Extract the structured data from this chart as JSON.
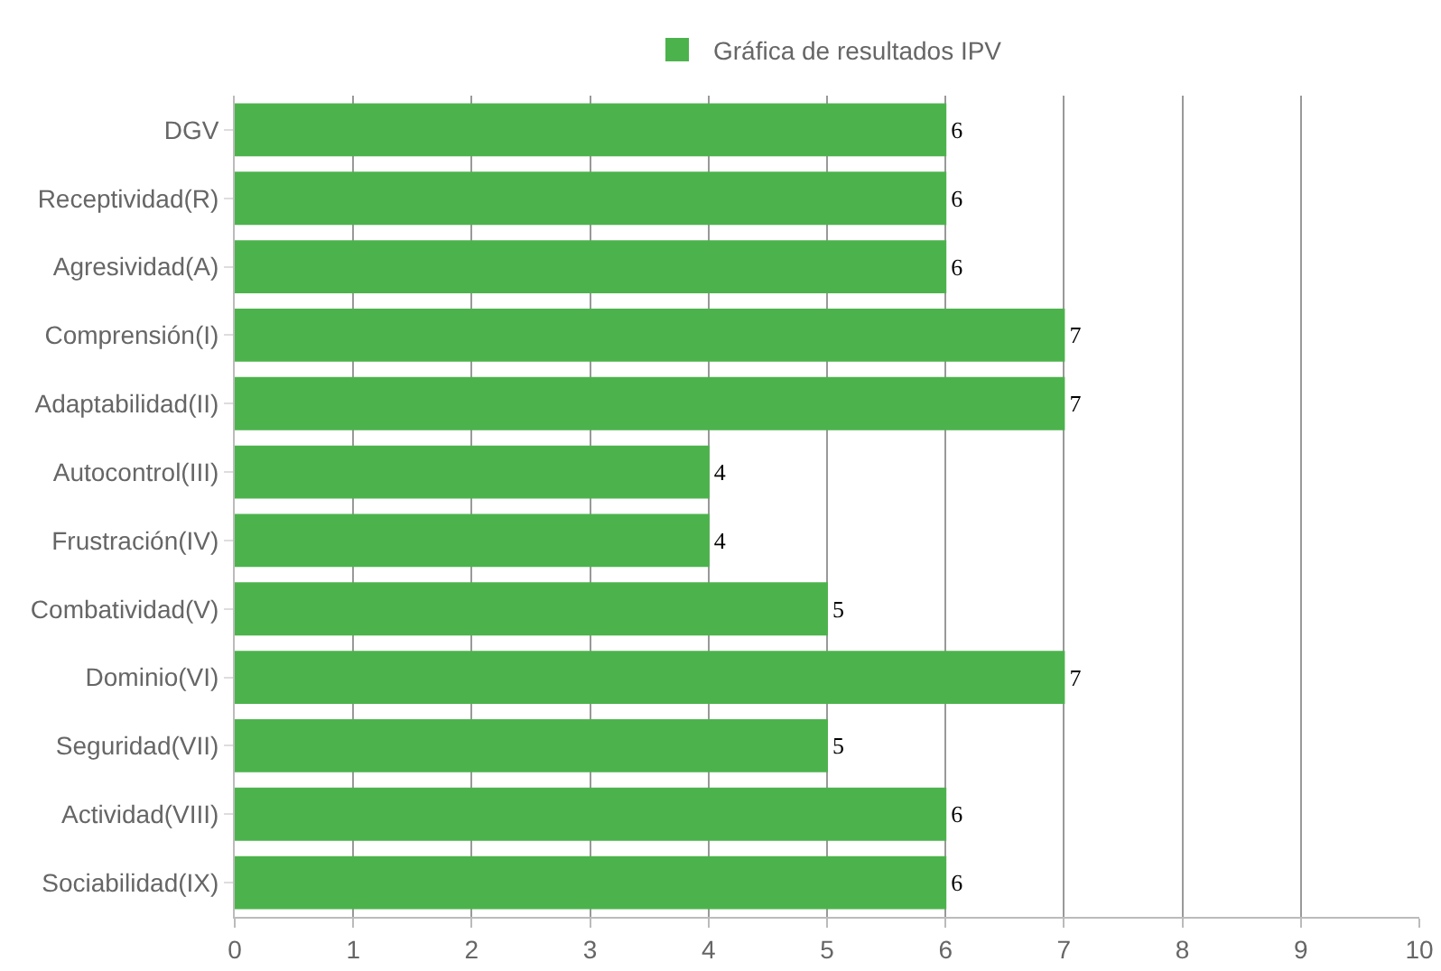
{
  "chart_data": {
    "type": "bar",
    "orientation": "horizontal",
    "categories": [
      "DGV",
      "Receptividad(R)",
      "Agresividad(A)",
      "Comprensión(I)",
      "Adaptabilidad(II)",
      "Autocontrol(III)",
      "Frustración(IV)",
      "Combatividad(V)",
      "Dominio(VI)",
      "Seguridad(VII)",
      "Actividad(VIII)",
      "Sociabilidad(IX)"
    ],
    "series": [
      {
        "name": "Gráfica de resultados IPV",
        "color": "#4cb34c",
        "values": [
          6,
          6,
          6,
          7,
          7,
          4,
          4,
          5,
          7,
          5,
          6,
          6
        ]
      }
    ],
    "xlim": [
      0,
      10
    ],
    "xticks": [
      0,
      1,
      2,
      3,
      4,
      5,
      6,
      7,
      8,
      9,
      10
    ],
    "grid": "x",
    "legend": "top",
    "data_labels": true
  }
}
